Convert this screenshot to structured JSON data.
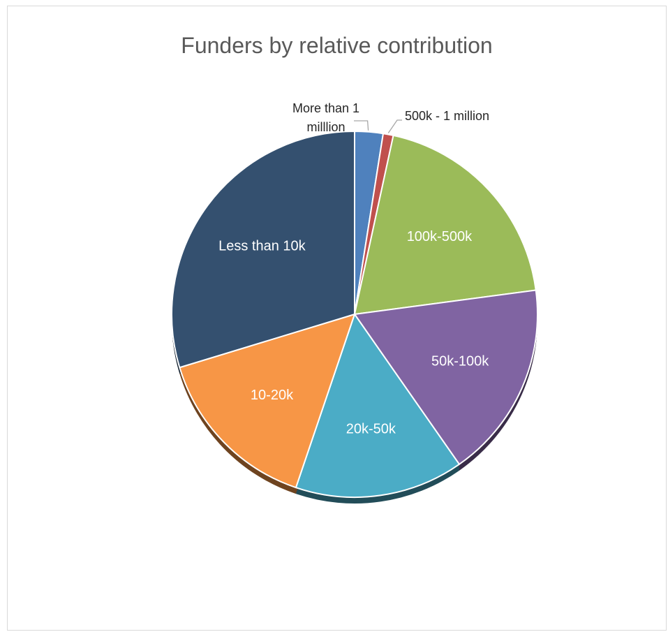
{
  "chart_data": {
    "type": "pie",
    "title": "Funders by relative contribution",
    "start_angle_deg": 0,
    "direction": "clockwise",
    "slices": [
      {
        "label": "More than 1\nmilllion",
        "value": 2.5,
        "color": "#4f81bd",
        "label_placement": "outside"
      },
      {
        "label": "500k - 1 million",
        "value": 0.9,
        "color": "#c0504d",
        "label_placement": "outside"
      },
      {
        "label": "100k-500k",
        "value": 19.5,
        "color": "#9bbb59",
        "label_placement": "inside"
      },
      {
        "label": "50k-100k",
        "value": 17.4,
        "color": "#8064a2",
        "label_placement": "inside"
      },
      {
        "label": "20k-50k",
        "value": 14.9,
        "color": "#4bacc6",
        "label_placement": "inside"
      },
      {
        "label": "10-20k",
        "value": 15.1,
        "color": "#f79646",
        "label_placement": "inside"
      },
      {
        "label": "Less than 10k",
        "value": 29.7,
        "color": "#34506f",
        "label_placement": "inside"
      }
    ],
    "legend": "none"
  }
}
